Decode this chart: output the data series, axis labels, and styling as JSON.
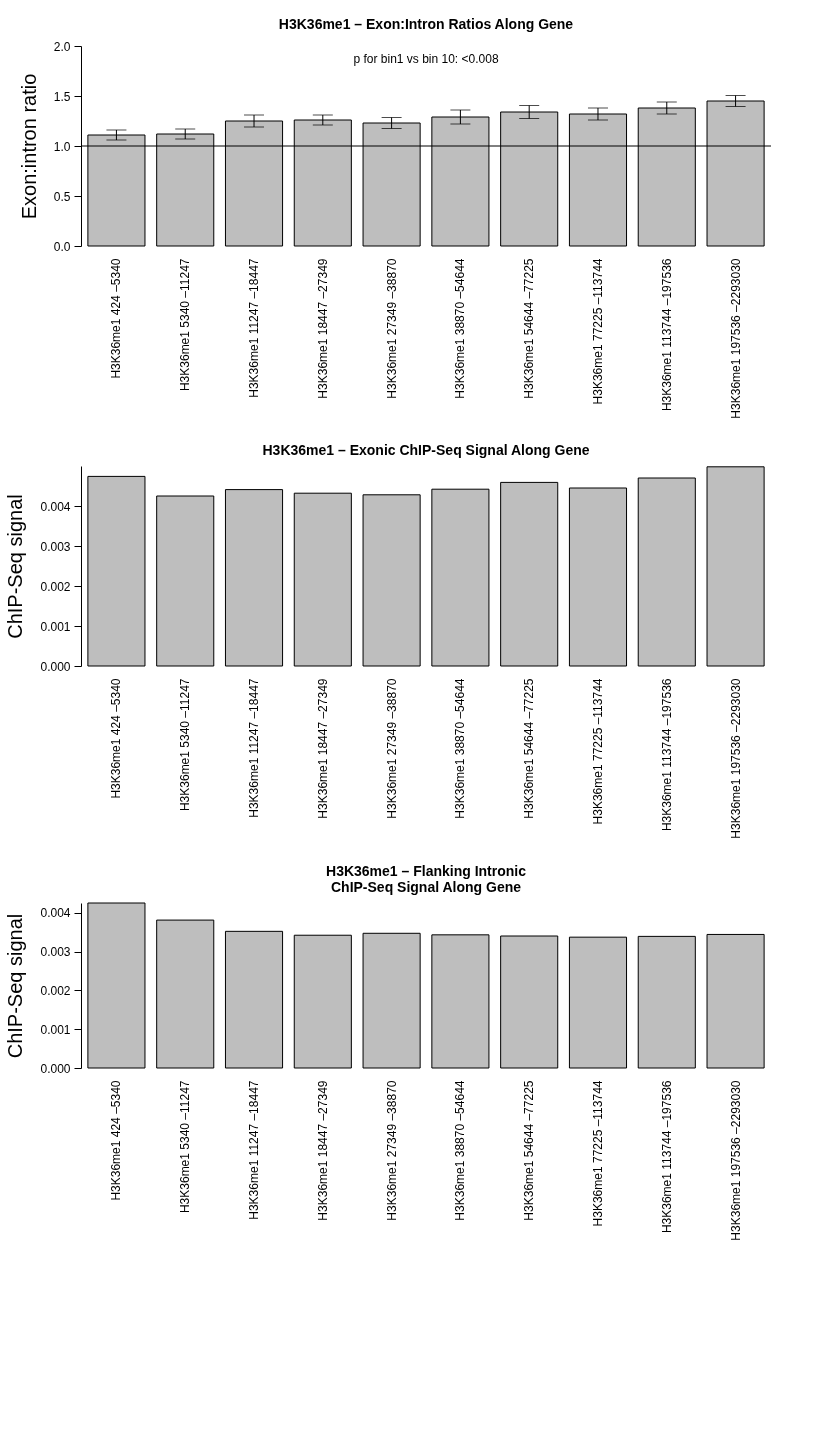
{
  "chart_data": [
    {
      "type": "bar",
      "title": "H3K36me1 – Exon:Intron Ratios Along Gene",
      "ylabel": "Exon:intron ratio",
      "categories": [
        "H3K36me1  424 –5340",
        "H3K36me1  5340 –11247",
        "H3K36me1  11247 –18447",
        "H3K36me1  18447 –27349",
        "H3K36me1  27349 –38870",
        "H3K36me1  38870 –54644",
        "H3K36me1  54644 –77225",
        "H3K36me1  77225 –113744",
        "H3K36me1  113744 –197536",
        "H3K36me1  197536 –2293030"
      ],
      "values": [
        1.11,
        1.12,
        1.25,
        1.26,
        1.23,
        1.29,
        1.34,
        1.32,
        1.38,
        1.45
      ],
      "errors": [
        0.05,
        0.05,
        0.06,
        0.05,
        0.055,
        0.07,
        0.065,
        0.06,
        0.06,
        0.055
      ],
      "color": "#bebebe",
      "ylim": [
        0,
        2
      ],
      "yticks": [
        {
          "value": 0,
          "label": "0.0"
        },
        {
          "value": 0.5,
          "label": "0.5"
        },
        {
          "value": 1,
          "label": "1.0"
        },
        {
          "value": 1.5,
          "label": "1.5"
        },
        {
          "value": 2,
          "label": "2.0"
        }
      ],
      "ref_lines": [
        {
          "axis": "y",
          "value": 1,
          "color": "#000000"
        }
      ],
      "annotations": [
        "p for bin1 vs bin 10:   <0.008"
      ],
      "grid": false
    },
    {
      "type": "bar",
      "title": "H3K36me1 – Exonic ChIP-Seq Signal Along Gene",
      "ylabel": "ChIP-Seq signal",
      "categories": [
        "H3K36me1  424 –5340",
        "H3K36me1  5340 –11247",
        "H3K36me1  11247 –18447",
        "H3K36me1  18447 –27349",
        "H3K36me1  27349 –38870",
        "H3K36me1  38870 –54644",
        "H3K36me1  54644 –77225",
        "H3K36me1  77225 –113744",
        "H3K36me1  113744 –197536",
        "H3K36me1  197536 –2293030"
      ],
      "values": [
        0.00474,
        0.00425,
        0.00441,
        0.00432,
        0.00428,
        0.00442,
        0.00459,
        0.00445,
        0.0047,
        0.00498
      ],
      "color": "#bebebe",
      "ylim": [
        0,
        0.005
      ],
      "yticks": [
        {
          "value": 0,
          "label": "0.000"
        },
        {
          "value": 0.001,
          "label": "0.001"
        },
        {
          "value": 0.002,
          "label": "0.002"
        },
        {
          "value": 0.003,
          "label": "0.003"
        },
        {
          "value": 0.004,
          "label": "0.004"
        }
      ],
      "grid": false
    },
    {
      "type": "bar",
      "title": "H3K36me1 – Flanking Intronic\nChIP-Seq Signal Along Gene",
      "ylabel": "ChIP-Seq signal",
      "categories": [
        "H3K36me1  424 –5340",
        "H3K36me1  5340 –11247",
        "H3K36me1  11247 –18447",
        "H3K36me1  18447 –27349",
        "H3K36me1  27349 –38870",
        "H3K36me1  38870 –54644",
        "H3K36me1  54644 –77225",
        "H3K36me1  77225 –113744",
        "H3K36me1  113744 –197536",
        "H3K36me1  197536 –2293030"
      ],
      "values": [
        0.00425,
        0.00381,
        0.00352,
        0.00342,
        0.00347,
        0.00343,
        0.0034,
        0.00337,
        0.00339,
        0.00344
      ],
      "color": "#bebebe",
      "ylim": [
        0,
        0.00425
      ],
      "yticks": [
        {
          "value": 0,
          "label": "0.000"
        },
        {
          "value": 0.001,
          "label": "0.001"
        },
        {
          "value": 0.002,
          "label": "0.002"
        },
        {
          "value": 0.003,
          "label": "0.003"
        },
        {
          "value": 0.004,
          "label": "0.004"
        }
      ],
      "grid": false
    }
  ]
}
